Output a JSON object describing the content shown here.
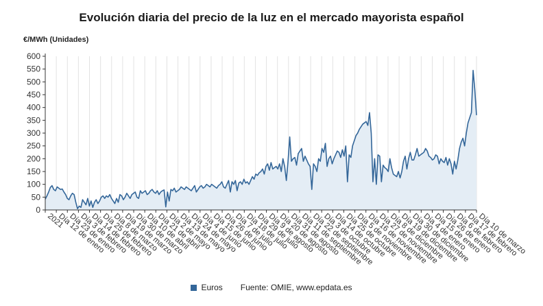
{
  "title": "Evolución diaria del precio de la luz en el mercado mayorista español",
  "unit_label": "€/MWh (Unidades)",
  "legend": {
    "series_name": "Euros",
    "source": "Fuente: OMIE, www.epdata.es"
  },
  "colors": {
    "line": "#336699",
    "area": "#e4edf5",
    "grid": "#e2e2e2",
    "axis": "#333333"
  },
  "chart_data": {
    "type": "area",
    "title": "Evolución diaria del precio de la luz en el mercado mayorista español",
    "ylabel": "€/MWh (Unidades)",
    "ylim": [
      0,
      600
    ],
    "yticks": [
      0,
      50,
      100,
      150,
      200,
      250,
      300,
      350,
      400,
      450,
      500,
      550,
      600
    ],
    "grid": "vertical",
    "legend_position": "bottom",
    "xtick_labels": [
      "2021",
      "Día 12 de enero",
      "Día 23 de enero",
      "Día 3 de febrero",
      "Día 14 de febrero",
      "Día 25 de febrero",
      "Día 8 de marzo",
      "Día 19 de marzo",
      "Día 30 de marzo",
      "Día 10 de abril",
      "Día 21 de abril",
      "Día 2 de mayo",
      "Día 13 de mayo",
      "Día 24 de mayo",
      "Día 4 de junio",
      "Día 15 de junio",
      "Día 26 de junio",
      "Día 7 de julio",
      "Día 18 de julio",
      "Día 29 de julio",
      "Día 9 de agosto",
      "Día 20 de agosto",
      "Día 31 de agosto",
      "Día 11 de septiembre",
      "Día 22 de septiembre",
      "Día 3 de octubre",
      "Día 14 de octubre",
      "Día 25 de octubre",
      "Día 5 de noviembre",
      "Día 16 de noviembre",
      "Día 27 de noviembre",
      "Día 8 de diciembre",
      "Día 19 de diciembre",
      "Día 30 de diciembre",
      "Día 4 de enero",
      "Día 15 de enero",
      "Día 26 de enero",
      "Día 6 de febrero",
      "Día 17 de febrero",
      "Día 10 de marzo"
    ],
    "series": [
      {
        "name": "Euros",
        "x_start": "2021-01-01",
        "x_end": "2022-03-10",
        "values": [
          42,
          55,
          70,
          88,
          95,
          80,
          75,
          90,
          85,
          80,
          82,
          70,
          60,
          45,
          40,
          55,
          65,
          60,
          30,
          5,
          15,
          10,
          40,
          30,
          20,
          45,
          15,
          35,
          10,
          30,
          40,
          25,
          35,
          50,
          55,
          45,
          55,
          50,
          60,
          45,
          35,
          25,
          45,
          30,
          60,
          55,
          40,
          50,
          65,
          55,
          45,
          60,
          65,
          70,
          50,
          45,
          75,
          65,
          70,
          75,
          60,
          65,
          75,
          80,
          70,
          65,
          75,
          60,
          70,
          75,
          78,
          12,
          70,
          35,
          80,
          75,
          85,
          70,
          75,
          80,
          90,
          85,
          80,
          90,
          85,
          80,
          75,
          85,
          95,
          70,
          80,
          90,
          95,
          85,
          90,
          100,
          95,
          90,
          100,
          95,
          90,
          85,
          95,
          100,
          110,
          90,
          85,
          100,
          115,
          70,
          110,
          100,
          115,
          75,
          105,
          110,
          100,
          120,
          105,
          110,
          100,
          115,
          130,
          120,
          140,
          135,
          145,
          150,
          160,
          140,
          170,
          180,
          155,
          185,
          160,
          165,
          170,
          160,
          180,
          150,
          200,
          170,
          115,
          190,
          285,
          190,
          200,
          205,
          175,
          220,
          230,
          240,
          190,
          210,
          195,
          180,
          170,
          80,
          180,
          170,
          150,
          200,
          190,
          240,
          225,
          260,
          170,
          200,
          210,
          180,
          200,
          215,
          230,
          225,
          205,
          235,
          210,
          250,
          110,
          215,
          205,
          250,
          270,
          290,
          300,
          315,
          325,
          335,
          340,
          345,
          330,
          380,
          300,
          110,
          200,
          100,
          215,
          210,
          110,
          175,
          165,
          160,
          150,
          200,
          165,
          140,
          135,
          130,
          150,
          125,
          150,
          190,
          210,
          160,
          200,
          225,
          195,
          195,
          215,
          240,
          210,
          215,
          220,
          225,
          240,
          230,
          210,
          205,
          195,
          200,
          215,
          210,
          180,
          200,
          190,
          185,
          205,
          175,
          200,
          180,
          140,
          190,
          160,
          195,
          240,
          265,
          280,
          250,
          300,
          340,
          360,
          380,
          545,
          470,
          370
        ]
      }
    ]
  }
}
